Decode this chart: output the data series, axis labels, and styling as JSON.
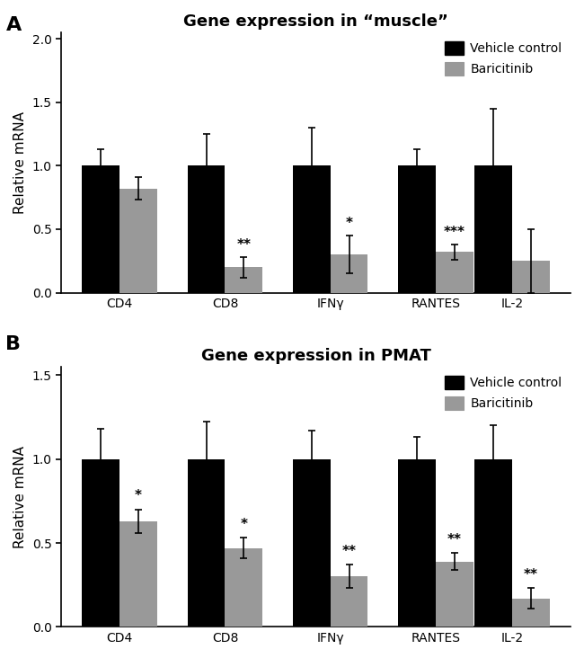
{
  "panel_A": {
    "title": "Gene expression in “muscle”",
    "categories": [
      "CD4",
      "CD8",
      "IFNγ",
      "RANTES",
      "IL-2"
    ],
    "vehicle_vals": [
      1.0,
      1.0,
      1.0,
      1.0,
      1.0
    ],
    "vehicle_errs": [
      0.13,
      0.25,
      0.3,
      0.13,
      0.45
    ],
    "bari_vals": [
      0.82,
      0.2,
      0.3,
      0.32,
      0.25
    ],
    "bari_errs": [
      0.09,
      0.08,
      0.15,
      0.06,
      0.25
    ],
    "significance": [
      "",
      "**",
      "*",
      "***",
      ""
    ],
    "ylim": [
      0,
      2.05
    ],
    "yticks": [
      0.0,
      0.5,
      1.0,
      1.5,
      2.0
    ],
    "ylabel": "Relative mRNA"
  },
  "panel_B": {
    "title": "Gene expression in PMAT",
    "categories": [
      "CD4",
      "CD8",
      "IFNγ",
      "RANTES",
      "IL-2"
    ],
    "vehicle_vals": [
      1.0,
      1.0,
      1.0,
      1.0,
      1.0
    ],
    "vehicle_errs": [
      0.18,
      0.22,
      0.17,
      0.13,
      0.2
    ],
    "bari_vals": [
      0.63,
      0.47,
      0.3,
      0.39,
      0.17
    ],
    "bari_errs": [
      0.07,
      0.06,
      0.07,
      0.05,
      0.06
    ],
    "significance": [
      "*",
      "*",
      "**",
      "**",
      "**"
    ],
    "ylim": [
      0,
      1.55
    ],
    "yticks": [
      0.0,
      0.5,
      1.0,
      1.5
    ],
    "ylabel": "Relative mRNA"
  },
  "bar_width": 0.32,
  "group_centers": [
    0.75,
    1.65,
    2.55,
    3.45,
    4.1
  ],
  "vehicle_color": "#000000",
  "bari_color": "#999999",
  "legend_labels": [
    "Vehicle control",
    "Baricitinib"
  ],
  "label_A": "A",
  "label_B": "B",
  "title_fontsize": 13,
  "axis_fontsize": 11,
  "tick_fontsize": 10,
  "legend_fontsize": 10,
  "sig_fontsize": 11
}
